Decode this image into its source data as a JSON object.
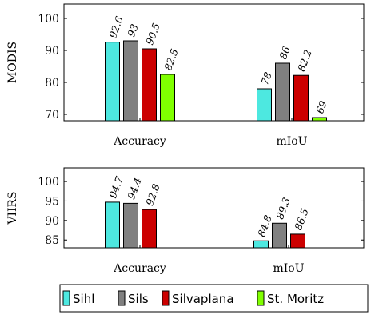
{
  "legend": [
    {
      "name": "Sihl",
      "color": "#4de8e0"
    },
    {
      "name": "Sils",
      "color": "#808080"
    },
    {
      "name": "Silvaplana",
      "color": "#cc0000"
    },
    {
      "name": "St. Moritz",
      "color": "#80ff00"
    }
  ],
  "chart_data": [
    {
      "type": "bar",
      "ylabel": "MODIS",
      "categories": [
        "Accuracy",
        "mIoU"
      ],
      "ylim": [
        68,
        104.5
      ],
      "yticks": [
        70,
        80,
        90,
        100
      ],
      "series": [
        {
          "name": "Sihl",
          "values": [
            92.6,
            78
          ]
        },
        {
          "name": "Sils",
          "values": [
            93,
            86
          ]
        },
        {
          "name": "Silvaplana",
          "values": [
            90.5,
            82.2
          ]
        },
        {
          "name": "St. Moritz",
          "values": [
            82.5,
            69
          ]
        }
      ],
      "labels": [
        [
          "92.6",
          "78"
        ],
        [
          "93",
          "86"
        ],
        [
          "90.5",
          "82.2"
        ],
        [
          "82.5",
          "69"
        ]
      ]
    },
    {
      "type": "bar",
      "ylabel": "VIIRS",
      "categories": [
        "Accuracy",
        "mIoU"
      ],
      "ylim": [
        83,
        103.5
      ],
      "yticks": [
        85,
        90,
        95,
        100
      ],
      "series": [
        {
          "name": "Sihl",
          "values": [
            94.7,
            84.8
          ]
        },
        {
          "name": "Sils",
          "values": [
            94.4,
            89.3
          ]
        },
        {
          "name": "Silvaplana",
          "values": [
            92.8,
            86.5
          ]
        }
      ],
      "labels": [
        [
          "94.7",
          "84.8"
        ],
        [
          "94.4",
          "89.3"
        ],
        [
          "92.8",
          "86.5"
        ]
      ]
    }
  ]
}
